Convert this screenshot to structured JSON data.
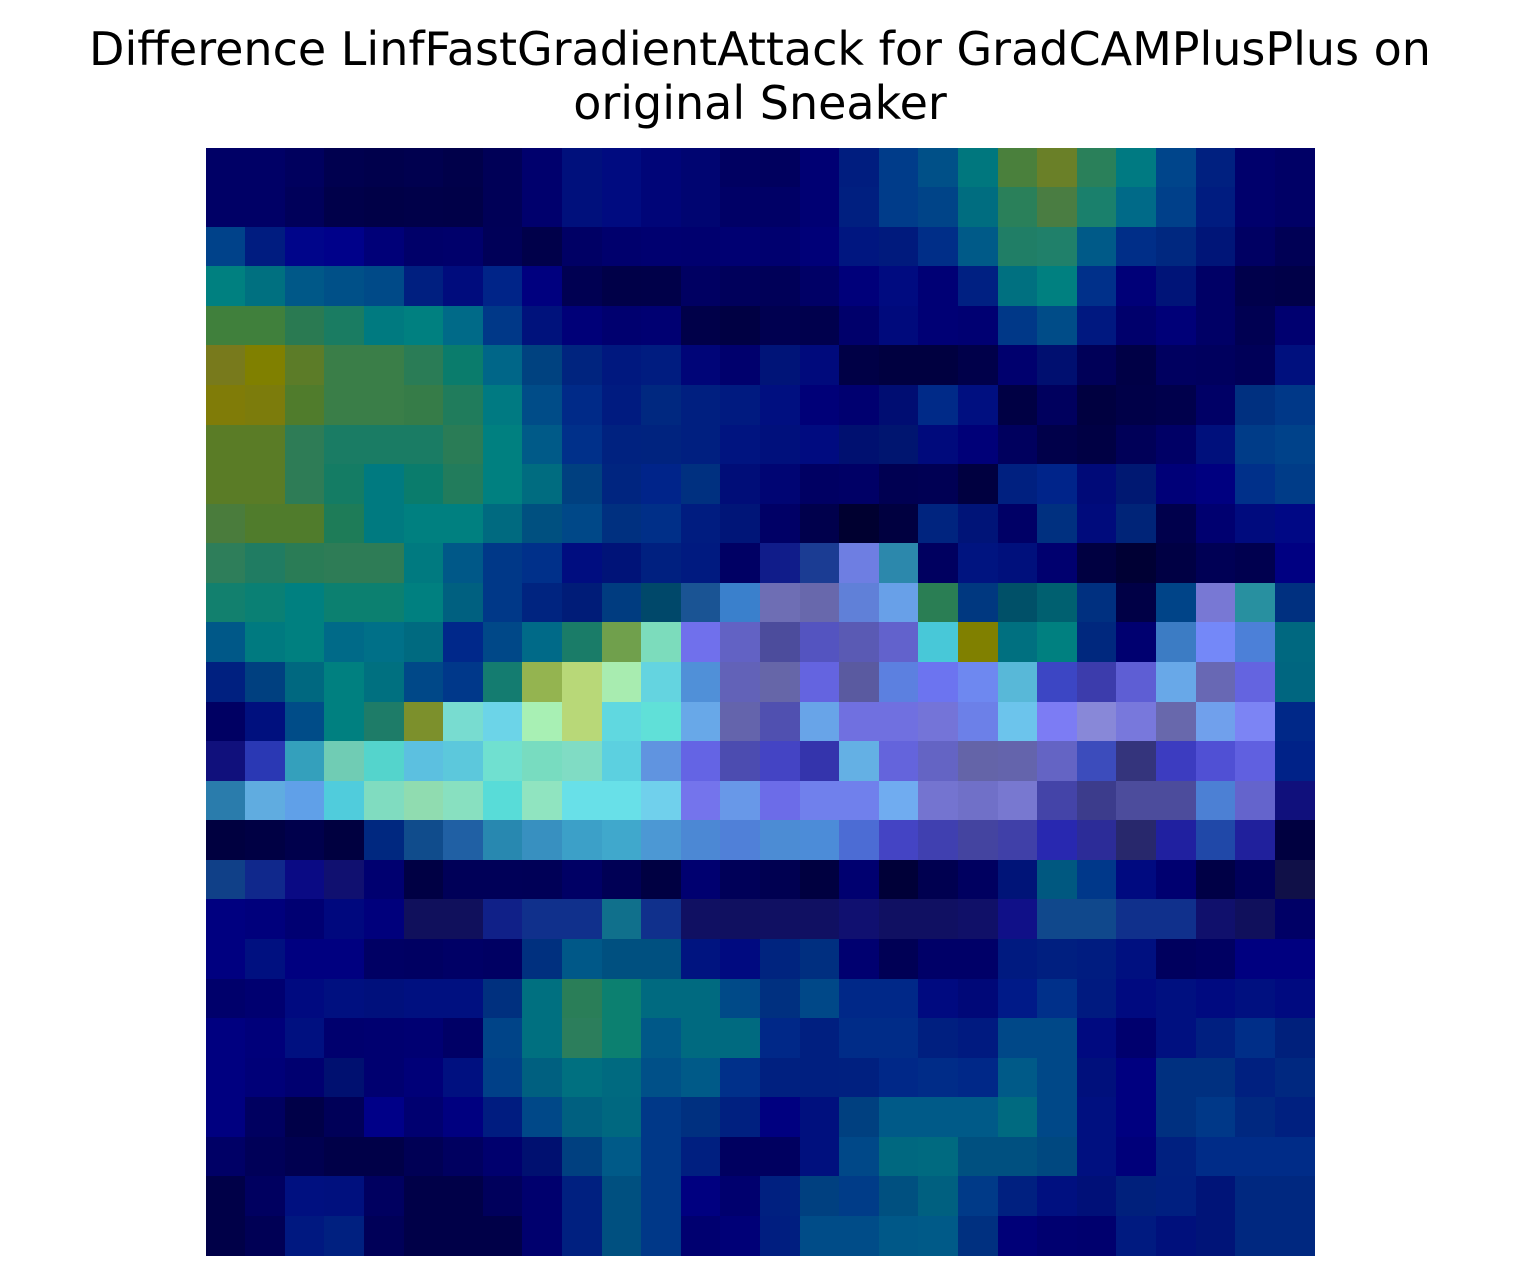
{
  "chart_data": {
    "type": "heatmap",
    "title_lines": [
      "Difference LinfFastGradientAttack for GradCAMPlusPlus on",
      "original Sneaker"
    ],
    "xlabel": "",
    "ylabel": "",
    "axes_visible": false,
    "grid": false,
    "legend": "none",
    "rows": 28,
    "cols": 28,
    "image": [
      [
        "#000066",
        "#000066",
        "#00005e",
        "#00004f",
        "#00004c",
        "#00004f",
        "#00004a",
        "#000057",
        "#00006d",
        "#00107c",
        "#000b80",
        "#000578",
        "#000571",
        "#000061",
        "#00005e",
        "#000073",
        "#001d7f",
        "#003c8a",
        "#005088",
        "#00777e",
        "#4a803c",
        "#6a8028",
        "#2a805a",
        "#007a82",
        "#00458b",
        "#002080",
        "#00006c",
        "#000066"
      ],
      [
        "#000066",
        "#000066",
        "#00005a",
        "#00004a",
        "#000047",
        "#000049",
        "#000048",
        "#000057",
        "#00006d",
        "#00107c",
        "#000b80",
        "#000578",
        "#000571",
        "#000066",
        "#000066",
        "#000073",
        "#001f80",
        "#003c8a",
        "#004488",
        "#006d80",
        "#2a805a",
        "#4a7d42",
        "#1a806c",
        "#006a88",
        "#00408a",
        "#001c80",
        "#00006c",
        "#000066"
      ],
      [
        "#00428a",
        "#001c80",
        "#00058a",
        "#00018a",
        "#000078",
        "#000069",
        "#00006b",
        "#000058",
        "#00004a",
        "#000065",
        "#00006d",
        "#000070",
        "#00006f",
        "#000072",
        "#00006f",
        "#000078",
        "#001680",
        "#001a7d",
        "#002e88",
        "#005a88",
        "#207e66",
        "#20806a",
        "#005a88",
        "#002e88",
        "#002880",
        "#001578",
        "#000063",
        "#000055"
      ],
      [
        "#008080",
        "#007080",
        "#005888",
        "#005088",
        "#004a88",
        "#001f80",
        "#000c7d",
        "#002488",
        "#00007f",
        "#000052",
        "#000048",
        "#000049",
        "#000062",
        "#00005b",
        "#000058",
        "#000066",
        "#00007a",
        "#000b80",
        "#000075",
        "#002082",
        "#007080",
        "#008080",
        "#00308a",
        "#000078",
        "#001478",
        "#000066",
        "#00004b",
        "#000048"
      ],
      [
        "#40803c",
        "#40803c",
        "#2a7a52",
        "#1a7c62",
        "#007a80",
        "#008080",
        "#006a88",
        "#003888",
        "#00127c",
        "#000078",
        "#00006f",
        "#000072",
        "#000049",
        "#000043",
        "#000050",
        "#00004d",
        "#00006b",
        "#000a7c",
        "#000075",
        "#000072",
        "#003888",
        "#004c88",
        "#001880",
        "#00006c",
        "#000078",
        "#000066",
        "#000052",
        "#000070"
      ],
      [
        "#787a1c",
        "#808000",
        "#5c7c28",
        "#3a7e48",
        "#3a7e48",
        "#2a7c56",
        "#0a7c6c",
        "#006688",
        "#004280",
        "#00247f",
        "#00187f",
        "#001c80",
        "#000578",
        "#00006d",
        "#001478",
        "#000a7c",
        "#000046",
        "#000040",
        "#000040",
        "#00004a",
        "#00006e",
        "#000f70",
        "#000058",
        "#000046",
        "#000060",
        "#00005e",
        "#000058",
        "#00107e"
      ],
      [
        "#807c08",
        "#7c7c0c",
        "#507c2c",
        "#3a7e48",
        "#3a7e48",
        "#367c48",
        "#207c5c",
        "#007a82",
        "#004c88",
        "#002a88",
        "#001b80",
        "#002880",
        "#001f80",
        "#001a80",
        "#000f80",
        "#000078",
        "#000070",
        "#000d72",
        "#002a88",
        "#000f80",
        "#000044",
        "#00005e",
        "#000040",
        "#000048",
        "#00004c",
        "#000066",
        "#003080",
        "#003888"
      ],
      [
        "#5a7c26",
        "#5a7c26",
        "#2e7c56",
        "#1a7c64",
        "#1a7c64",
        "#1a7c64",
        "#2a7c56",
        "#008080",
        "#005a88",
        "#00308a",
        "#002280",
        "#00237f",
        "#001f80",
        "#001480",
        "#00107c",
        "#000b80",
        "#001070",
        "#001570",
        "#000a7c",
        "#000078",
        "#00005e",
        "#00004a",
        "#000044",
        "#000058",
        "#000066",
        "#00107c",
        "#003c88",
        "#00428a"
      ],
      [
        "#5a7c26",
        "#5a7c26",
        "#2e7c56",
        "#147c64",
        "#007a80",
        "#0a7c6c",
        "#227c5c",
        "#008080",
        "#006c80",
        "#004080",
        "#002580",
        "#00248a",
        "#003080",
        "#000d78",
        "#000573",
        "#000063",
        "#000066",
        "#000052",
        "#000054",
        "#000040",
        "#002080",
        "#00248a",
        "#000a78",
        "#001872",
        "#000078",
        "#000080",
        "#00308a",
        "#003c88"
      ],
      [
        "#4a7c3c",
        "#507c2c",
        "#507c2c",
        "#1e7c58",
        "#007a80",
        "#008080",
        "#008080",
        "#006a80",
        "#005080",
        "#004888",
        "#003080",
        "#002f88",
        "#001c80",
        "#001578",
        "#000066",
        "#00004c",
        "#000030",
        "#000040",
        "#00247f",
        "#001478",
        "#000066",
        "#003080",
        "#000b7c",
        "#002478",
        "#00004c",
        "#000070",
        "#000b7e",
        "#000885"
      ],
      [
        "#2e7e5a",
        "#207c62",
        "#2a7c56",
        "#2e7c56",
        "#2e7c56",
        "#007a80",
        "#005888",
        "#003888",
        "#00308a",
        "#000d80",
        "#001378",
        "#002080",
        "#001a80",
        "#000064",
        "#101c8a",
        "#1b3c93",
        "#6e7ee2",
        "#2c88ac",
        "#000060",
        "#001480",
        "#00107c",
        "#00006f",
        "#000041",
        "#000034",
        "#000044",
        "#000055",
        "#00004f",
        "#000082"
      ],
      [
        "#12806e",
        "#0a8074",
        "#008080",
        "#0c8070",
        "#0c8070",
        "#008080",
        "#006080",
        "#003888",
        "#002480",
        "#001c78",
        "#003c80",
        "#00486a",
        "#1a5494",
        "#3a80cc",
        "#6e6eb4",
        "#6868ac",
        "#6080d8",
        "#68a0e8",
        "#2a7e54",
        "#003880",
        "#005068",
        "#006070",
        "#003080",
        "#000046",
        "#004488",
        "#7878d4",
        "#2890a0",
        "#003080"
      ],
      [
        "#005888",
        "#007a80",
        "#008080",
        "#006a88",
        "#007088",
        "#006a80",
        "#00288a",
        "#004888",
        "#006a88",
        "#1a7c68",
        "#70a04c",
        "#7cdcbc",
        "#7070ec",
        "#6262c4",
        "#4c4c9c",
        "#5454c0",
        "#5a5ab4",
        "#6262cc",
        "#48c8d8",
        "#808000",
        "#007080",
        "#008080",
        "#00287e",
        "#000070",
        "#3c7cc4",
        "#7488f8",
        "#4c80d8",
        "#006880"
      ],
      [
        "#002080",
        "#004080",
        "#006880",
        "#008080",
        "#007080",
        "#004888",
        "#00388a",
        "#147c70",
        "#94b450",
        "#b8d878",
        "#a8ecb0",
        "#64d4e0",
        "#5090d8",
        "#6262b8",
        "#6666a8",
        "#6464e0",
        "#5a5aa0",
        "#5c80e0",
        "#6c74f0",
        "#6e88f0",
        "#58b8d8",
        "#3c46c4",
        "#3c3cac",
        "#5e5ed4",
        "#68a8e8",
        "#6868b4",
        "#6464e0",
        "#006680"
      ],
      [
        "#000063",
        "#00107e",
        "#004c88",
        "#008080",
        "#1e7c68",
        "#7c902c",
        "#78dcd0",
        "#6cd4e8",
        "#a8f0b4",
        "#b8d878",
        "#60d8e0",
        "#60e0d8",
        "#68a8e8",
        "#6464ac",
        "#5050b0",
        "#68a4e8",
        "#7070e0",
        "#7070e0",
        "#7474d8",
        "#6c80e8",
        "#6cc4ec",
        "#7c7cf4",
        "#8888d8",
        "#7878dc",
        "#6868ac",
        "#70a0ec",
        "#7c84f4",
        "#002888"
      ],
      [
        "#10107c",
        "#2a38b4",
        "#34a0bc",
        "#70ccb4",
        "#54d4cc",
        "#5cc0e0",
        "#5cc8dc",
        "#70e0d0",
        "#78dcc0",
        "#80dcc4",
        "#5cd0e0",
        "#6094e0",
        "#6464e4",
        "#4c4cb0",
        "#4444c4",
        "#3434ac",
        "#64b0e4",
        "#6464dc",
        "#6464c4",
        "#6464a8",
        "#6464ac",
        "#6464c4",
        "#3c4cbc",
        "#34347c",
        "#3c3cc0",
        "#5050d4",
        "#6060e0",
        "#002288"
      ],
      [
        "#2a7cac",
        "#60ace0",
        "#60a0e8",
        "#50ccdc",
        "#80dcc0",
        "#90dcb0",
        "#88e0c0",
        "#58dcd8",
        "#90e4c0",
        "#68e0e8",
        "#68e0e8",
        "#70d0ec",
        "#7474ec",
        "#6898e8",
        "#6c6ce8",
        "#7080ec",
        "#7080ec",
        "#70acf0",
        "#7474d0",
        "#7070c8",
        "#7878d0",
        "#4444a8",
        "#3c3c8c",
        "#4c4c9c",
        "#4c4c9c",
        "#4c80d4",
        "#6464cc",
        "#10107c"
      ],
      [
        "#000040",
        "#000044",
        "#00004c",
        "#000040",
        "#002880",
        "#104c8c",
        "#2060a4",
        "#2888b0",
        "#3890c0",
        "#3ca0c8",
        "#40a8cc",
        "#4c98d4",
        "#4c88d4",
        "#5080d8",
        "#4c8cd4",
        "#4c8cd8",
        "#4c6cd4",
        "#4444c4",
        "#4040b0",
        "#4444a0",
        "#4040a8",
        "#2828b0",
        "#2c2c98",
        "#28286c",
        "#2020a0",
        "#2048a8",
        "#20209c",
        "#000040"
      ],
      [
        "#104088",
        "#10288c",
        "#0a0a84",
        "#101070",
        "#000070",
        "#000044",
        "#000058",
        "#000058",
        "#000057",
        "#000065",
        "#000055",
        "#000042",
        "#000070",
        "#000058",
        "#000051",
        "#000040",
        "#000070",
        "#000038",
        "#000050",
        "#000060",
        "#001478",
        "#005880",
        "#00388a",
        "#000a80",
        "#000070",
        "#000046",
        "#00005a",
        "#101048"
      ],
      [
        "#000080",
        "#00007c",
        "#000072",
        "#00087e",
        "#00007c",
        "#10105c",
        "#10105c",
        "#102088",
        "#10308c",
        "#10308c",
        "#10708c",
        "#10308c",
        "#101062",
        "#101060",
        "#101062",
        "#101062",
        "#101070",
        "#101062",
        "#101062",
        "#101068",
        "#101088",
        "#10488c",
        "#10488c",
        "#10308c",
        "#10308c",
        "#10106c",
        "#10105c",
        "#000066"
      ],
      [
        "#000080",
        "#001080",
        "#000080",
        "#000080",
        "#000064",
        "#000062",
        "#000066",
        "#000063",
        "#00307f",
        "#005888",
        "#005080",
        "#005080",
        "#001480",
        "#000a80",
        "#00247f",
        "#002f80",
        "#000070",
        "#000055",
        "#000068",
        "#000068",
        "#001a80",
        "#001f80",
        "#001c80",
        "#001080",
        "#00005e",
        "#000062",
        "#000080",
        "#000080"
      ],
      [
        "#00006b",
        "#000070",
        "#000a80",
        "#001080",
        "#00107c",
        "#001080",
        "#001080",
        "#00307f",
        "#007080",
        "#2a7e58",
        "#0c8070",
        "#006a80",
        "#006a80",
        "#004a88",
        "#003080",
        "#004888",
        "#002888",
        "#002888",
        "#000a80",
        "#000878",
        "#001a88",
        "#00308a",
        "#001a80",
        "#000a80",
        "#001080",
        "#000a80",
        "#001080",
        "#000a80"
      ],
      [
        "#000080",
        "#00007a",
        "#001080",
        "#00006e",
        "#000070",
        "#000072",
        "#000066",
        "#004488",
        "#007080",
        "#2c7e5c",
        "#0c8070",
        "#005888",
        "#006a80",
        "#006a80",
        "#002888",
        "#001f80",
        "#002c88",
        "#002c88",
        "#001f80",
        "#001a80",
        "#004888",
        "#004888",
        "#000a80",
        "#00006e",
        "#001080",
        "#001f80",
        "#002e88",
        "#00207c"
      ],
      [
        "#000080",
        "#000078",
        "#000070",
        "#001070",
        "#000070",
        "#000078",
        "#001080",
        "#004088",
        "#006080",
        "#007080",
        "#006a80",
        "#005088",
        "#005a88",
        "#00308a",
        "#002080",
        "#001f80",
        "#002080",
        "#002888",
        "#002c88",
        "#002888",
        "#005a88",
        "#004888",
        "#00107c",
        "#000080",
        "#003080",
        "#003080",
        "#002080",
        "#002880"
      ],
      [
        "#000080",
        "#000060",
        "#000048",
        "#000058",
        "#000088",
        "#000070",
        "#000080",
        "#001c80",
        "#004888",
        "#006080",
        "#006880",
        "#003888",
        "#003080",
        "#002080",
        "#000080",
        "#00107e",
        "#004080",
        "#005a88",
        "#005a88",
        "#005a88",
        "#006a80",
        "#004888",
        "#001080",
        "#000080",
        "#003080",
        "#003888",
        "#002880",
        "#002080"
      ],
      [
        "#000066",
        "#000058",
        "#000050",
        "#000048",
        "#000048",
        "#000055",
        "#000060",
        "#00006e",
        "#001070",
        "#004080",
        "#005a88",
        "#003888",
        "#001f80",
        "#000060",
        "#000060",
        "#00107e",
        "#004888",
        "#006880",
        "#006a80",
        "#005080",
        "#005080",
        "#004880",
        "#001080",
        "#00007a",
        "#002080",
        "#002c88",
        "#002c88",
        "#002c88"
      ],
      [
        "#000048",
        "#000060",
        "#001080",
        "#00107e",
        "#000060",
        "#000048",
        "#000048",
        "#00005c",
        "#00006e",
        "#002080",
        "#005080",
        "#003888",
        "#000080",
        "#00006e",
        "#002080",
        "#004080",
        "#003c88",
        "#005080",
        "#006080",
        "#003a88",
        "#002080",
        "#001080",
        "#001078",
        "#00207c",
        "#001f80",
        "#001478",
        "#002880",
        "#002880"
      ],
      [
        "#000048",
        "#000055",
        "#001880",
        "#002080",
        "#000058",
        "#000048",
        "#000048",
        "#000048",
        "#00006e",
        "#002080",
        "#005080",
        "#003888",
        "#000070",
        "#000077",
        "#001e80",
        "#004c88",
        "#004c88",
        "#005888",
        "#005a88",
        "#003080",
        "#000078",
        "#000070",
        "#00006e",
        "#001a80",
        "#00107c",
        "#001478",
        "#002880",
        "#002880"
      ]
    ]
  }
}
